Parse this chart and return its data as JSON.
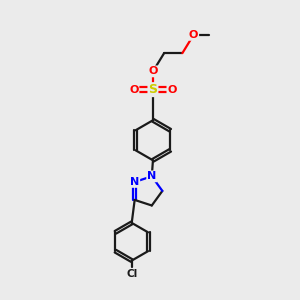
{
  "background_color": "#ebebeb",
  "bond_color": "#1a1a1a",
  "oxygen_color": "#ff0000",
  "sulfur_color": "#cccc00",
  "nitrogen_color": "#0000ff",
  "line_width": 1.6,
  "figsize": [
    3.0,
    3.0
  ],
  "dpi": 100,
  "xlim": [
    0,
    10
  ],
  "ylim": [
    0,
    10
  ]
}
